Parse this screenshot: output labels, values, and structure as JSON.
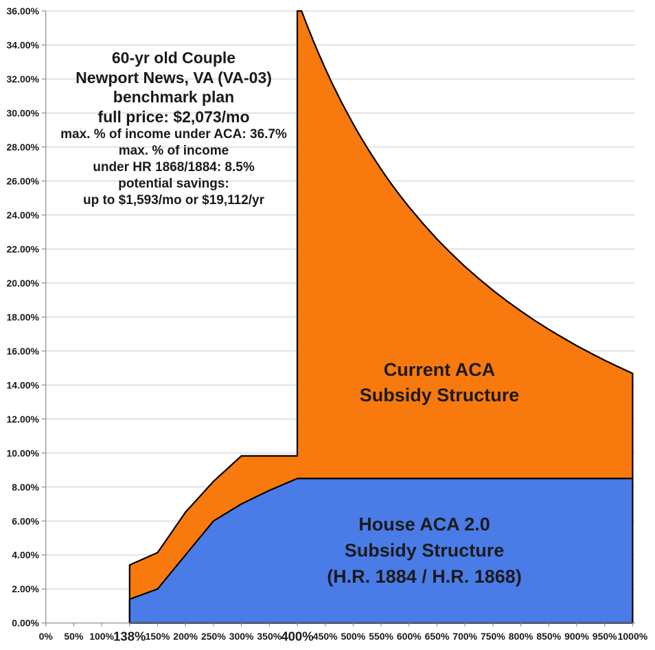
{
  "chart_data": {
    "type": "area",
    "annotation": {
      "lines": [
        {
          "text": "60-yr old Couple",
          "size": "large"
        },
        {
          "text": "Newport News, VA (VA-03)",
          "size": "large"
        },
        {
          "text": "benchmark plan",
          "size": "large"
        },
        {
          "text": "full price: $2,073/mo",
          "size": "large"
        },
        {
          "text": "max. % of income under ACA: 36.7%",
          "size": "medium"
        },
        {
          "text": "max. % of income",
          "size": "medium"
        },
        {
          "text": "under HR 1868/1884: 8.5%",
          "size": "medium"
        },
        {
          "text": "potential savings:",
          "size": "medium"
        },
        {
          "text": "up to $1,593/mo or $19,112/yr",
          "size": "medium"
        }
      ]
    },
    "x_axis": {
      "categories": [
        "0%",
        "50%",
        "100%",
        "138%",
        "150%",
        "200%",
        "250%",
        "300%",
        "350%",
        "400%",
        "450%",
        "500%",
        "550%",
        "600%",
        "650%",
        "700%",
        "750%",
        "800%",
        "850%",
        "900%",
        "950%",
        "1000%"
      ],
      "emphasized_labels": [
        "138%",
        "400%"
      ]
    },
    "y_axis": {
      "min": 0,
      "max": 36,
      "step": 2,
      "labels": [
        "0.00%",
        "2.00%",
        "4.00%",
        "6.00%",
        "8.00%",
        "10.00%",
        "12.00%",
        "14.00%",
        "16.00%",
        "18.00%",
        "20.00%",
        "22.00%",
        "24.00%",
        "26.00%",
        "28.00%",
        "30.00%",
        "32.00%",
        "34.00%",
        "36.00%"
      ]
    },
    "grid": true,
    "colors": {
      "gridline": "#C9C9C9",
      "axis": "#8C8C8C",
      "text": "#1a1a1a",
      "series_outline": "#000000"
    },
    "series": [
      {
        "name": "Current ACA Subsidy Structure",
        "fill_color": "#F8790D",
        "line_color": "#000000",
        "note": "percent of income required for benchmark plan under current ACA; subsidy cliff at 400% FPL, peak 36.7% clipped at 36% axis max, declines as full price / income to 14.68% at 1000%",
        "points": [
          [
            138,
            3.41
          ],
          [
            150,
            4.14
          ],
          [
            200,
            6.52
          ],
          [
            250,
            8.33
          ],
          [
            300,
            9.83
          ],
          [
            350,
            9.83
          ],
          [
            400,
            9.83
          ],
          [
            400,
            36.7
          ],
          [
            407.8,
            36.0
          ],
          [
            410,
            35.8
          ],
          [
            420,
            34.95
          ],
          [
            430,
            34.14
          ],
          [
            440,
            33.36
          ],
          [
            450,
            32.62
          ],
          [
            460,
            31.91
          ],
          [
            470,
            31.23
          ],
          [
            480,
            30.58
          ],
          [
            490,
            29.96
          ],
          [
            500,
            29.36
          ],
          [
            510,
            28.78
          ],
          [
            520,
            28.23
          ],
          [
            530,
            27.7
          ],
          [
            540,
            27.19
          ],
          [
            550,
            26.69
          ],
          [
            560,
            26.21
          ],
          [
            570,
            25.75
          ],
          [
            580,
            25.31
          ],
          [
            590,
            24.88
          ],
          [
            600,
            24.47
          ],
          [
            625,
            23.49
          ],
          [
            650,
            22.58
          ],
          [
            675,
            21.75
          ],
          [
            700,
            20.97
          ],
          [
            725,
            20.25
          ],
          [
            750,
            19.57
          ],
          [
            775,
            18.94
          ],
          [
            800,
            18.35
          ],
          [
            825,
            17.79
          ],
          [
            850,
            17.27
          ],
          [
            875,
            16.78
          ],
          [
            900,
            16.31
          ],
          [
            925,
            15.87
          ],
          [
            950,
            15.45
          ],
          [
            975,
            15.06
          ],
          [
            1000,
            14.68
          ]
        ],
        "label_lines": [
          "Current ACA",
          "Subsidy Structure"
        ]
      },
      {
        "name": "House ACA 2.0 Subsidy Structure (H.R. 1884 / H.R. 1868)",
        "fill_color": "#4A7CE8",
        "line_color": "#000000",
        "note": "percent of income required under House bills; capped at 8.5% of income above 400% FPL",
        "points": [
          [
            138,
            1.4
          ],
          [
            150,
            2.0
          ],
          [
            200,
            4.0
          ],
          [
            250,
            6.0
          ],
          [
            300,
            7.0
          ],
          [
            350,
            7.8
          ],
          [
            400,
            8.5
          ],
          [
            1000,
            8.5
          ]
        ],
        "label_lines": [
          "House ACA 2.0",
          "Subsidy Structure",
          "(H.R. 1884 / H.R. 1868)"
        ]
      }
    ]
  }
}
